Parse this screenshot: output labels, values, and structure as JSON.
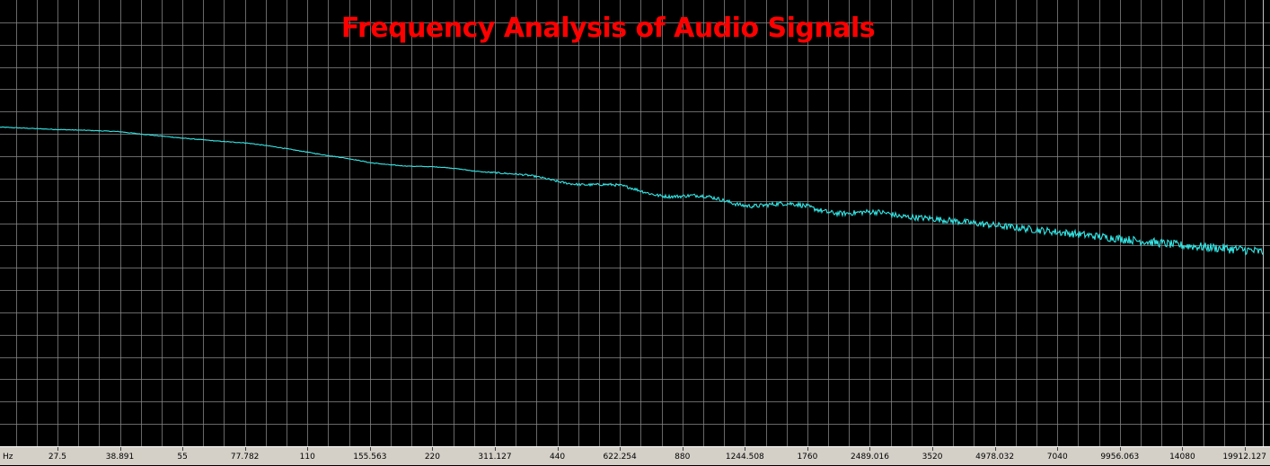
{
  "title": "Frequency Analysis of Audio Signals",
  "colors": {
    "background": "#000000",
    "grid": "#8a8a8a",
    "trace": "#33e6e6",
    "title": "#ff0000",
    "axis_bar": "#d4d0c8"
  },
  "chart_data": {
    "type": "line",
    "title": "Frequency Analysis of Audio Signals",
    "xlabel": "Hz",
    "ylabel": "",
    "x_scale": "log",
    "xlim": [
      20,
      22000
    ],
    "ylim": [
      0,
      20
    ],
    "grid": true,
    "x_tick_labels": [
      "27.5",
      "38.891",
      "55",
      "77.782",
      "110",
      "155.563",
      "220",
      "311.127",
      "440",
      "622.254",
      "880",
      "1244.508",
      "1760",
      "2489.016",
      "3520",
      "4978.032",
      "7040",
      "9956.063",
      "14080",
      "19912.127"
    ],
    "x_tick_values": [
      27.5,
      38.891,
      55,
      77.782,
      110,
      155.563,
      220,
      311.127,
      440,
      622.254,
      880,
      1244.508,
      1760,
      2489.016,
      3520,
      4978.032,
      7040,
      9956.063,
      14080,
      19912.127
    ],
    "series": [
      {
        "values_note": "",
        "x": [
          20,
          27.5,
          38.891,
          55,
          77.782,
          110,
          155.563,
          220,
          311.127,
          440,
          622.254,
          880,
          1244.508,
          1760,
          2489.016,
          3520,
          4978.032,
          7040,
          9956.063,
          14080,
          19912.127,
          22000
        ],
        "y": [
          14.3,
          14.2,
          14.1,
          13.8,
          13.6,
          13.2,
          12.7,
          12.5,
          12.3,
          11.9,
          11.6,
          11.2,
          10.9,
          10.7,
          10.4,
          10.2,
          9.9,
          9.6,
          9.3,
          9.0,
          8.8,
          8.7
        ]
      }
    ]
  }
}
